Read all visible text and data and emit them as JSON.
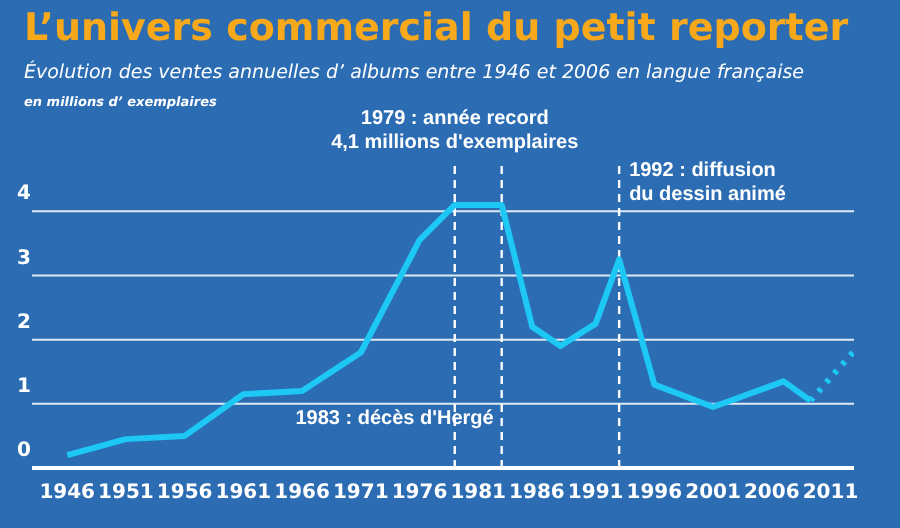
{
  "chart_data": {
    "type": "line",
    "title": "L’univers commercial du petit reporter",
    "subtitle": "Évolution des ventes annuelles d’ albums entre 1946 et 2006 en langue française",
    "ylabel": "en millions d’ exemplaires",
    "series": [
      {
        "color": "#1ec8f5",
        "line_style": "solid",
        "x": [
          1946,
          1951,
          1956,
          1961,
          1966,
          1971,
          1976,
          1979,
          1983,
          1985.6,
          1988,
          1991,
          1993,
          1996,
          2001,
          2007,
          2009.3
        ],
        "values": [
          0.2,
          0.45,
          0.5,
          1.15,
          1.2,
          1.8,
          3.55,
          4.1,
          4.1,
          2.2,
          1.9,
          2.25,
          3.25,
          1.3,
          0.95,
          1.35,
          1.05
        ]
      },
      {
        "color": "#1ec8f5",
        "line_style": "dotted",
        "x": [
          2009.3,
          2012.9
        ],
        "values": [
          1.05,
          1.8
        ]
      }
    ],
    "xlim": [
      1943,
      2013
    ],
    "xticks": [
      1946,
      1951,
      1956,
      1961,
      1966,
      1971,
      1976,
      1981,
      1986,
      1991,
      1996,
      2001,
      2006,
      2011
    ],
    "ylim": [
      0,
      4.8
    ],
    "yticks": [
      0,
      1,
      2,
      3,
      4
    ],
    "grid": "y",
    "marker": "none",
    "ref_lines": [
      {
        "axis": "x",
        "value": 1979,
        "label": "1979 : année record\n4,1 millions d'exemplaires",
        "line_style": "dashed",
        "color": "#ffffff"
      },
      {
        "axis": "x",
        "value": 1983,
        "label": "1983 : décès d'Hergé",
        "line_style": "dashed",
        "color": "#ffffff"
      },
      {
        "axis": "x",
        "value": 1993,
        "label": "1992 : diffusion\ndu dessin animé",
        "line_style": "dashed",
        "color": "#ffffff"
      }
    ]
  }
}
